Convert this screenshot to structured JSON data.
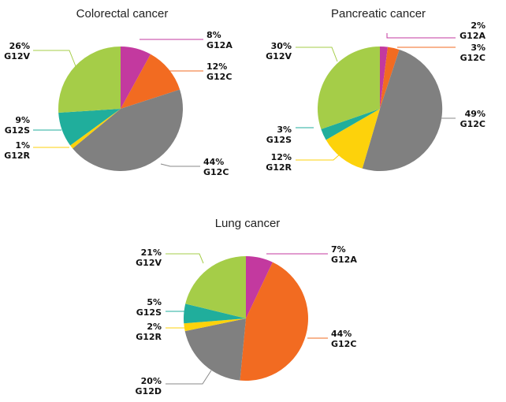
{
  "colors": {
    "G12A": "#c3399f",
    "G12C": "#f26b21",
    "G12C_grey": "#808080",
    "G12R": "#fdd20b",
    "G12S": "#20ae9c",
    "G12V": "#a5cd48",
    "G12D": "#808080",
    "leader": "#888888"
  },
  "chart_data": [
    {
      "type": "pie",
      "title": "Colorectal cancer",
      "slices": [
        {
          "pct_label": "8%",
          "name": "G12A",
          "value": 8,
          "color": "#c3399f"
        },
        {
          "pct_label": "12%",
          "name": "G12C",
          "value": 12,
          "color": "#f26b21"
        },
        {
          "pct_label": "44%",
          "name": "G12C",
          "value": 44,
          "color": "#808080"
        },
        {
          "pct_label": "1%",
          "name": "G12R",
          "value": 1,
          "color": "#fdd20b"
        },
        {
          "pct_label": "9%",
          "name": "G12S",
          "value": 9,
          "color": "#20ae9c"
        },
        {
          "pct_label": "26%",
          "name": "G12V",
          "value": 26,
          "color": "#a5cd48"
        }
      ]
    },
    {
      "type": "pie",
      "title": "Pancreatic cancer",
      "slices": [
        {
          "pct_label": "2%",
          "name": "G12A",
          "value": 2,
          "color": "#c3399f"
        },
        {
          "pct_label": "3%",
          "name": "G12C",
          "value": 3,
          "color": "#f26b21"
        },
        {
          "pct_label": "49%",
          "name": "G12C",
          "value": 49,
          "color": "#808080"
        },
        {
          "pct_label": "12%",
          "name": "G12R",
          "value": 12,
          "color": "#fdd20b"
        },
        {
          "pct_label": "3%",
          "name": "G12S",
          "value": 3,
          "color": "#20ae9c"
        },
        {
          "pct_label": "30%",
          "name": "G12V",
          "value": 30,
          "color": "#a5cd48"
        }
      ]
    },
    {
      "type": "pie",
      "title": "Lung cancer",
      "slices": [
        {
          "pct_label": "7%",
          "name": "G12A",
          "value": 7,
          "color": "#c3399f"
        },
        {
          "pct_label": "44%",
          "name": "G12C",
          "value": 44,
          "color": "#f26b21"
        },
        {
          "pct_label": "20%",
          "name": "G12D",
          "value": 20,
          "color": "#808080"
        },
        {
          "pct_label": "2%",
          "name": "G12R",
          "value": 2,
          "color": "#fdd20b"
        },
        {
          "pct_label": "5%",
          "name": "G12S",
          "value": 5,
          "color": "#20ae9c"
        },
        {
          "pct_label": "21%",
          "name": "G12V",
          "value": 21,
          "color": "#a5cd48"
        }
      ]
    }
  ]
}
